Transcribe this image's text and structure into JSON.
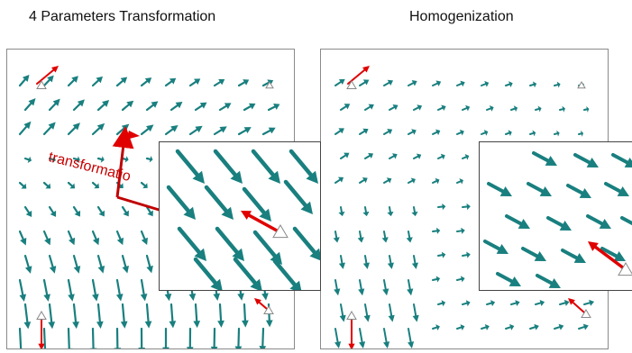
{
  "titles": {
    "left": "4 Parameters Transformation",
    "right": "Homogenization"
  },
  "annotations": {
    "transformation": "transformatio"
  },
  "colors": {
    "vector": "#197f7f",
    "highlight": "#e00000",
    "control_point": "#888888"
  }
}
